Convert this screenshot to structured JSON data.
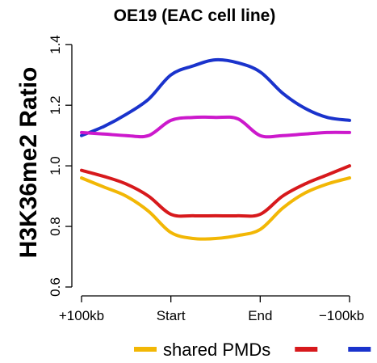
{
  "chart_data": {
    "type": "line",
    "title": "OE19 (EAC cell line)",
    "xlabel": "",
    "ylabel": "H3K36me2 Ratio",
    "x_ticks": [
      "+100kb",
      "Start",
      "End",
      "−100kb"
    ],
    "y_ticks": [
      "0.6",
      "0.8",
      "1.0",
      "1.2",
      "1.4"
    ],
    "xlim": [
      0,
      3
    ],
    "ylim": [
      0.6,
      1.43
    ],
    "grid": false,
    "legend_position": "bottom",
    "x": [
      0,
      0.25,
      0.5,
      0.75,
      1.0,
      1.25,
      1.5,
      1.75,
      2.0,
      2.25,
      2.5,
      2.75,
      3.0
    ],
    "series": [
      {
        "name": "shared PMDs",
        "color": "#f2b705",
        "values": [
          0.96,
          0.93,
          0.9,
          0.85,
          0.78,
          0.76,
          0.76,
          0.77,
          0.79,
          0.86,
          0.91,
          0.94,
          0.96
        ]
      },
      {
        "color": "#d7191c",
        "values": [
          0.985,
          0.965,
          0.94,
          0.9,
          0.84,
          0.835,
          0.835,
          0.835,
          0.84,
          0.9,
          0.94,
          0.97,
          1.0
        ]
      },
      {
        "color": "#1a33cc",
        "values": [
          1.1,
          1.13,
          1.17,
          1.22,
          1.3,
          1.33,
          1.35,
          1.34,
          1.31,
          1.24,
          1.19,
          1.16,
          1.15
        ]
      },
      {
        "color": "#cc19cc",
        "values": [
          1.11,
          1.105,
          1.1,
          1.1,
          1.15,
          1.16,
          1.16,
          1.155,
          1.1,
          1.1,
          1.105,
          1.11,
          1.11
        ]
      }
    ]
  }
}
